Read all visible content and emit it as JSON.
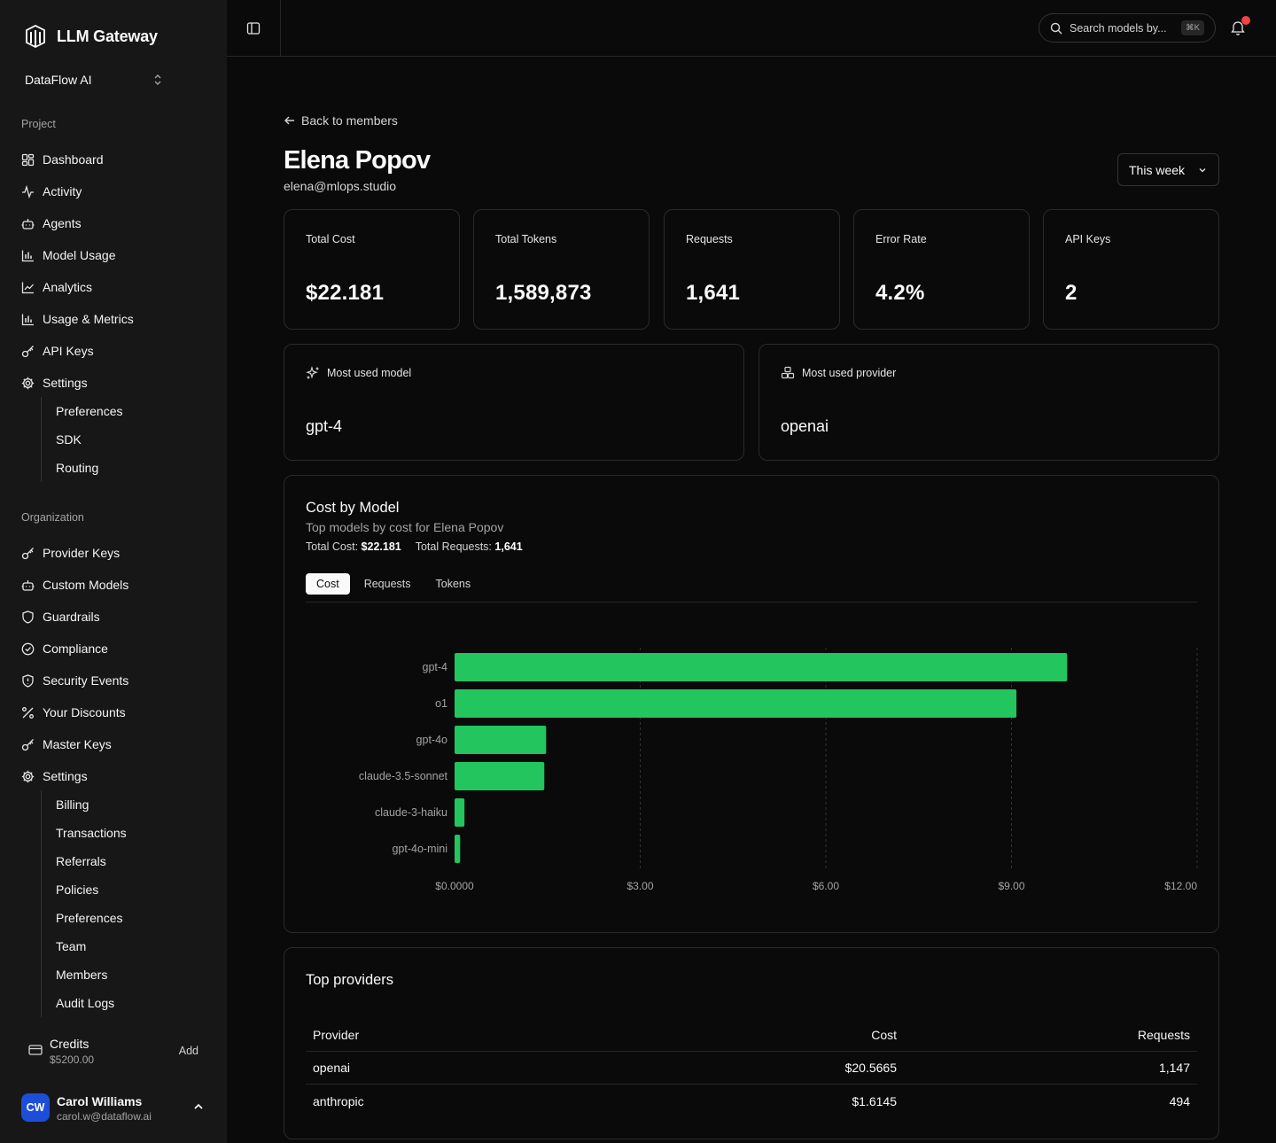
{
  "app": {
    "name": "LLM Gateway",
    "org": "DataFlow AI"
  },
  "sidebar": {
    "project_label": "Project",
    "project_items": [
      {
        "label": "Dashboard",
        "icon": "dashboard-icon"
      },
      {
        "label": "Activity",
        "icon": "activity-icon"
      },
      {
        "label": "Agents",
        "icon": "bot-icon"
      },
      {
        "label": "Model Usage",
        "icon": "bar-chart-icon"
      },
      {
        "label": "Analytics",
        "icon": "line-chart-icon"
      },
      {
        "label": "Usage & Metrics",
        "icon": "bar-chart-icon"
      },
      {
        "label": "API Keys",
        "icon": "key-icon"
      },
      {
        "label": "Settings",
        "icon": "gear-icon"
      }
    ],
    "project_settings_sub": [
      "Preferences",
      "SDK",
      "Routing"
    ],
    "org_label": "Organization",
    "org_items": [
      {
        "label": "Provider Keys",
        "icon": "key-icon"
      },
      {
        "label": "Custom Models",
        "icon": "bot-icon"
      },
      {
        "label": "Guardrails",
        "icon": "shield-icon"
      },
      {
        "label": "Compliance",
        "icon": "check-circle-icon"
      },
      {
        "label": "Security Events",
        "icon": "shield-alert-icon"
      },
      {
        "label": "Your Discounts",
        "icon": "percent-icon"
      },
      {
        "label": "Master Keys",
        "icon": "key-icon"
      },
      {
        "label": "Settings",
        "icon": "gear-icon"
      }
    ],
    "org_settings_sub": [
      "Billing",
      "Transactions",
      "Referrals",
      "Policies",
      "Preferences",
      "Team",
      "Members",
      "Audit Logs"
    ],
    "credits": {
      "label": "Credits",
      "value": "$5200.00",
      "action": "Add"
    },
    "user": {
      "initials": "CW",
      "name": "Carol Williams",
      "email": "carol.w@dataflow.ai"
    }
  },
  "topbar": {
    "search_placeholder": "Search models by...",
    "shortcut": "⌘K"
  },
  "page": {
    "back_label": "Back to members",
    "title": "Elena Popov",
    "email": "elena@mlops.studio",
    "range": "This week"
  },
  "stats": [
    {
      "label": "Total Cost",
      "value": "$22.181"
    },
    {
      "label": "Total Tokens",
      "value": "1,589,873"
    },
    {
      "label": "Requests",
      "value": "1,641"
    },
    {
      "label": "Error Rate",
      "value": "4.2%"
    },
    {
      "label": "API Keys",
      "value": "2"
    }
  ],
  "most_used": {
    "model_label": "Most used model",
    "model": "gpt-4",
    "provider_label": "Most used provider",
    "provider": "openai"
  },
  "cost_by_model": {
    "title": "Cost by Model",
    "subtitle": "Top models by cost for Elena Popov",
    "total_cost_label": "Total Cost:",
    "total_cost": "$22.181",
    "total_requests_label": "Total Requests:",
    "total_requests": "1,641",
    "tabs": [
      "Cost",
      "Requests",
      "Tokens"
    ],
    "active_tab": "Cost"
  },
  "chart_data": {
    "type": "bar",
    "orientation": "horizontal",
    "categories": [
      "gpt-4",
      "o1",
      "gpt-4o",
      "claude-3.5-sonnet",
      "claude-3-haiku",
      "gpt-4o-mini"
    ],
    "values": [
      9.9,
      9.08,
      1.48,
      1.45,
      0.16,
      0.09
    ],
    "xlim": [
      0,
      12
    ],
    "x_ticks": [
      "$0.0000",
      "$3.00",
      "$6.00",
      "$9.00",
      "$12.00"
    ],
    "bar_color": "#22c55e",
    "grid": "vertical-dashed"
  },
  "top_providers": {
    "title": "Top providers",
    "columns": [
      "Provider",
      "Cost",
      "Requests"
    ],
    "rows": [
      [
        "openai",
        "$20.5665",
        "1,147"
      ],
      [
        "anthropic",
        "$1.6145",
        "494"
      ]
    ]
  }
}
